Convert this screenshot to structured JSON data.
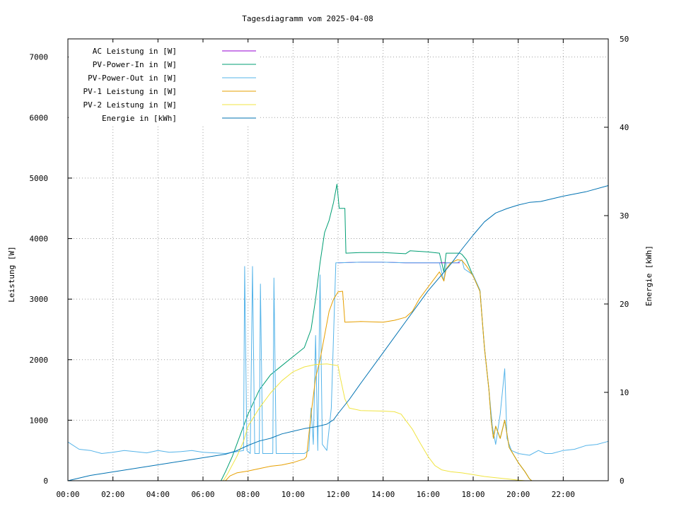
{
  "chart_data": {
    "type": "line",
    "title": "Tagesdiagramm vom 2025-04-08",
    "ylabel": "Leistung [W]",
    "y2label": "Energie [kWh]",
    "xlabel": "",
    "xlim": [
      0,
      24
    ],
    "ylim": [
      0,
      7300
    ],
    "y2lim": [
      0,
      50
    ],
    "x_ticks": [
      "00:00",
      "02:00",
      "04:00",
      "06:00",
      "08:00",
      "10:00",
      "12:00",
      "14:00",
      "16:00",
      "18:00",
      "20:00",
      "22:00"
    ],
    "y_ticks": [
      "0",
      "1000",
      "2000",
      "3000",
      "4000",
      "5000",
      "6000",
      "7000"
    ],
    "y2_ticks": [
      "0",
      "10",
      "20",
      "30",
      "40",
      "50"
    ],
    "grid": true,
    "legend_position": "top-left",
    "series": [
      {
        "name": "AC Leistung in [W]",
        "color": "#9400d3",
        "axis": "y",
        "points": [
          [
            12.0,
            3600
          ],
          [
            13.0,
            3610
          ],
          [
            14.0,
            3610
          ],
          [
            15.0,
            3600
          ],
          [
            16.0,
            3600
          ],
          [
            17.0,
            3600
          ],
          [
            17.4,
            3600
          ]
        ]
      },
      {
        "name": "PV-Power-In in [W]",
        "color": "#009e73",
        "axis": "y",
        "points": [
          [
            0.0,
            0
          ],
          [
            6.8,
            0
          ],
          [
            7.0,
            150
          ],
          [
            7.3,
            400
          ],
          [
            7.6,
            700
          ],
          [
            8.0,
            1100
          ],
          [
            8.5,
            1500
          ],
          [
            9.0,
            1750
          ],
          [
            9.5,
            1900
          ],
          [
            10.0,
            2050
          ],
          [
            10.5,
            2200
          ],
          [
            10.8,
            2500
          ],
          [
            11.0,
            3000
          ],
          [
            11.2,
            3600
          ],
          [
            11.4,
            4100
          ],
          [
            11.6,
            4300
          ],
          [
            11.8,
            4600
          ],
          [
            11.95,
            4900
          ],
          [
            12.05,
            4500
          ],
          [
            12.3,
            4500
          ],
          [
            12.35,
            3760
          ],
          [
            13.0,
            3770
          ],
          [
            14.0,
            3770
          ],
          [
            15.0,
            3750
          ],
          [
            15.2,
            3800
          ],
          [
            16.0,
            3780
          ],
          [
            16.5,
            3760
          ],
          [
            16.7,
            3450
          ],
          [
            16.8,
            3760
          ],
          [
            17.0,
            3760
          ],
          [
            17.4,
            3760
          ],
          [
            17.5,
            3740
          ],
          [
            17.7,
            3650
          ],
          [
            18.0,
            3380
          ],
          [
            18.3,
            3130
          ],
          [
            18.5,
            2200
          ],
          [
            18.7,
            1500
          ],
          [
            18.8,
            1000
          ],
          [
            18.9,
            700
          ],
          [
            19.0,
            900
          ],
          [
            19.2,
            700
          ],
          [
            19.4,
            1000
          ],
          [
            19.6,
            550
          ],
          [
            20.0,
            300
          ],
          [
            20.3,
            150
          ],
          [
            20.5,
            30
          ],
          [
            20.6,
            0
          ],
          [
            24.0,
            0
          ]
        ]
      },
      {
        "name": "PV-Power-Out in [W]",
        "color": "#56b4e9",
        "axis": "y",
        "points": [
          [
            0.0,
            640
          ],
          [
            0.5,
            520
          ],
          [
            1.0,
            500
          ],
          [
            1.5,
            450
          ],
          [
            2.0,
            470
          ],
          [
            2.5,
            500
          ],
          [
            3.0,
            480
          ],
          [
            3.5,
            460
          ],
          [
            4.0,
            500
          ],
          [
            4.5,
            470
          ],
          [
            5.0,
            480
          ],
          [
            5.5,
            500
          ],
          [
            6.0,
            470
          ],
          [
            6.5,
            460
          ],
          [
            7.0,
            450
          ],
          [
            7.5,
            480
          ],
          [
            7.8,
            500
          ],
          [
            7.85,
            3540
          ],
          [
            7.95,
            500
          ],
          [
            8.1,
            450
          ],
          [
            8.2,
            3540
          ],
          [
            8.3,
            450
          ],
          [
            8.5,
            450
          ],
          [
            8.55,
            3250
          ],
          [
            8.65,
            450
          ],
          [
            9.0,
            450
          ],
          [
            9.1,
            450
          ],
          [
            9.15,
            3350
          ],
          [
            9.25,
            450
          ],
          [
            9.5,
            450
          ],
          [
            10.0,
            450
          ],
          [
            10.5,
            450
          ],
          [
            10.7,
            500
          ],
          [
            10.8,
            1200
          ],
          [
            10.9,
            600
          ],
          [
            11.0,
            2400
          ],
          [
            11.1,
            500
          ],
          [
            11.2,
            3400
          ],
          [
            11.3,
            600
          ],
          [
            11.5,
            500
          ],
          [
            11.7,
            1200
          ],
          [
            11.9,
            3600
          ],
          [
            12.0,
            3600
          ],
          [
            13.0,
            3610
          ],
          [
            14.0,
            3610
          ],
          [
            15.0,
            3600
          ],
          [
            16.0,
            3600
          ],
          [
            16.5,
            3600
          ],
          [
            16.7,
            3300
          ],
          [
            16.8,
            3600
          ],
          [
            17.0,
            3600
          ],
          [
            17.3,
            3600
          ],
          [
            17.5,
            3650
          ],
          [
            17.6,
            3500
          ],
          [
            18.0,
            3400
          ],
          [
            18.3,
            3150
          ],
          [
            18.5,
            2200
          ],
          [
            18.7,
            1500
          ],
          [
            18.85,
            900
          ],
          [
            19.0,
            600
          ],
          [
            19.2,
            1100
          ],
          [
            19.4,
            1850
          ],
          [
            19.5,
            700
          ],
          [
            19.7,
            500
          ],
          [
            20.0,
            450
          ],
          [
            20.5,
            420
          ],
          [
            20.9,
            500
          ],
          [
            21.2,
            450
          ],
          [
            21.5,
            450
          ],
          [
            22.0,
            500
          ],
          [
            22.5,
            520
          ],
          [
            23.0,
            580
          ],
          [
            23.5,
            600
          ],
          [
            24.0,
            650
          ]
        ]
      },
      {
        "name": "PV-1 Leistung in [W]",
        "color": "#e69f00",
        "axis": "y",
        "points": [
          [
            0.0,
            0
          ],
          [
            7.0,
            0
          ],
          [
            7.2,
            80
          ],
          [
            7.5,
            130
          ],
          [
            8.0,
            160
          ],
          [
            8.5,
            200
          ],
          [
            9.0,
            240
          ],
          [
            9.5,
            260
          ],
          [
            10.0,
            300
          ],
          [
            10.5,
            360
          ],
          [
            10.6,
            400
          ],
          [
            10.8,
            1100
          ],
          [
            11.0,
            1700
          ],
          [
            11.2,
            2000
          ],
          [
            11.4,
            2400
          ],
          [
            11.6,
            2800
          ],
          [
            11.8,
            3000
          ],
          [
            12.0,
            3120
          ],
          [
            12.2,
            3130
          ],
          [
            12.3,
            2620
          ],
          [
            13.0,
            2630
          ],
          [
            14.0,
            2620
          ],
          [
            14.5,
            2650
          ],
          [
            15.0,
            2700
          ],
          [
            15.3,
            2800
          ],
          [
            15.6,
            3000
          ],
          [
            16.0,
            3200
          ],
          [
            16.3,
            3350
          ],
          [
            16.5,
            3450
          ],
          [
            16.7,
            3300
          ],
          [
            16.8,
            3500
          ],
          [
            17.0,
            3600
          ],
          [
            17.3,
            3650
          ],
          [
            17.5,
            3640
          ],
          [
            17.7,
            3550
          ],
          [
            18.0,
            3380
          ],
          [
            18.3,
            3130
          ],
          [
            18.5,
            2200
          ],
          [
            18.7,
            1500
          ],
          [
            18.8,
            1000
          ],
          [
            18.9,
            700
          ],
          [
            19.0,
            900
          ],
          [
            19.2,
            700
          ],
          [
            19.4,
            1000
          ],
          [
            19.6,
            550
          ],
          [
            20.0,
            300
          ],
          [
            20.3,
            150
          ],
          [
            20.5,
            30
          ],
          [
            20.6,
            0
          ],
          [
            24.0,
            0
          ]
        ]
      },
      {
        "name": "PV-2 Leistung in [W]",
        "color": "#f0e442",
        "axis": "y",
        "points": [
          [
            0.0,
            0
          ],
          [
            6.9,
            0
          ],
          [
            7.1,
            120
          ],
          [
            7.5,
            400
          ],
          [
            7.8,
            650
          ],
          [
            8.0,
            900
          ],
          [
            8.5,
            1200
          ],
          [
            9.0,
            1450
          ],
          [
            9.5,
            1650
          ],
          [
            10.0,
            1800
          ],
          [
            10.5,
            1880
          ],
          [
            11.0,
            1920
          ],
          [
            11.5,
            1930
          ],
          [
            12.0,
            1900
          ],
          [
            12.1,
            1700
          ],
          [
            12.3,
            1350
          ],
          [
            12.5,
            1200
          ],
          [
            13.0,
            1160
          ],
          [
            14.0,
            1150
          ],
          [
            14.5,
            1140
          ],
          [
            14.8,
            1100
          ],
          [
            15.0,
            1000
          ],
          [
            15.3,
            850
          ],
          [
            15.6,
            650
          ],
          [
            16.0,
            400
          ],
          [
            16.3,
            250
          ],
          [
            16.6,
            180
          ],
          [
            17.0,
            150
          ],
          [
            17.5,
            130
          ],
          [
            18.0,
            100
          ],
          [
            18.5,
            70
          ],
          [
            19.0,
            50
          ],
          [
            19.5,
            30
          ],
          [
            20.0,
            10
          ],
          [
            20.3,
            0
          ],
          [
            24.0,
            0
          ]
        ]
      },
      {
        "name": "Energie in [kWh]",
        "color": "#0072b2",
        "axis": "y2",
        "points": [
          [
            0.0,
            0.0
          ],
          [
            1.0,
            0.6
          ],
          [
            2.0,
            1.0
          ],
          [
            3.0,
            1.4
          ],
          [
            4.0,
            1.8
          ],
          [
            5.0,
            2.2
          ],
          [
            6.0,
            2.6
          ],
          [
            7.0,
            3.0
          ],
          [
            7.5,
            3.4
          ],
          [
            8.0,
            4.0
          ],
          [
            8.5,
            4.5
          ],
          [
            9.0,
            4.8
          ],
          [
            9.5,
            5.3
          ],
          [
            10.0,
            5.6
          ],
          [
            10.5,
            5.9
          ],
          [
            11.0,
            6.1
          ],
          [
            11.5,
            6.4
          ],
          [
            11.8,
            6.9
          ],
          [
            12.0,
            7.6
          ],
          [
            12.5,
            9.2
          ],
          [
            13.0,
            11.0
          ],
          [
            14.0,
            14.5
          ],
          [
            15.0,
            18.0
          ],
          [
            16.0,
            21.5
          ],
          [
            17.0,
            24.5
          ],
          [
            17.5,
            26.2
          ],
          [
            18.0,
            27.8
          ],
          [
            18.5,
            29.3
          ],
          [
            19.0,
            30.3
          ],
          [
            19.5,
            30.8
          ],
          [
            20.0,
            31.2
          ],
          [
            20.5,
            31.5
          ],
          [
            21.0,
            31.6
          ],
          [
            22.0,
            32.2
          ],
          [
            23.0,
            32.7
          ],
          [
            24.0,
            33.4
          ]
        ]
      }
    ]
  }
}
